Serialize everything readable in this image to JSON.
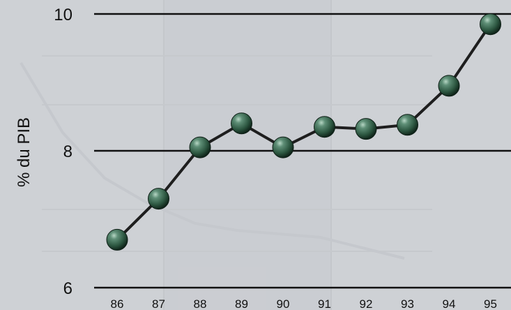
{
  "chart_data": {
    "type": "line",
    "title": "",
    "xlabel": "",
    "ylabel": "% du PIB",
    "categories": [
      "86",
      "87",
      "88",
      "89",
      "90",
      "91",
      "92",
      "93",
      "94",
      "95"
    ],
    "values": [
      6.7,
      7.3,
      8.05,
      8.4,
      8.05,
      8.35,
      8.32,
      8.38,
      8.95,
      9.85
    ],
    "ylim": [
      6,
      10
    ],
    "yticks": [
      "6",
      "8",
      "10"
    ],
    "grid": "horizontal lines at each y tick",
    "legend": "none"
  },
  "colors": {
    "background": "#ced1d5",
    "line": "#1e1e1e",
    "marker": "#2f5a45",
    "gridline": "#111111",
    "background_ghost": "#b9bcc1"
  }
}
